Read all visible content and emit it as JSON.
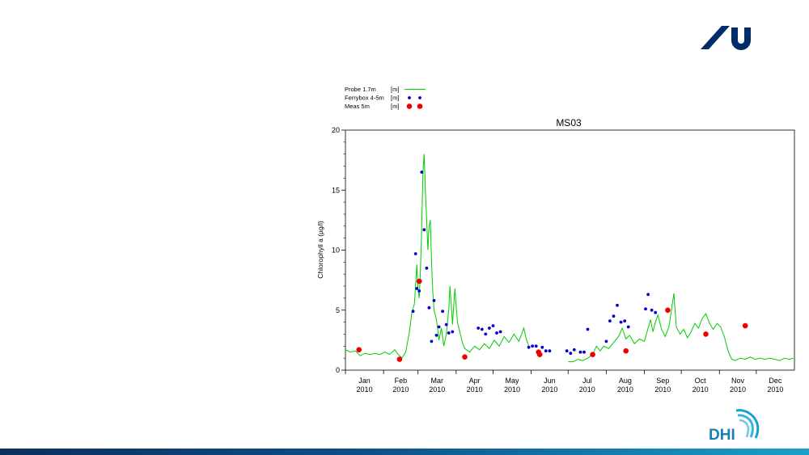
{
  "brand": {
    "primary": "#002d6a",
    "dhi_text": "DHI",
    "dhi_color": "#1a7fb5",
    "footer_bar": "#0d4f8b"
  },
  "chart_data": {
    "type": "line",
    "title": "MS03",
    "ylabel": "Chlorophyll a (µg/l)",
    "xlabel": "",
    "ylim": [
      0,
      20
    ],
    "yticks": [
      0,
      5,
      10,
      15,
      20
    ],
    "xlim": [
      "2010-01-01",
      "2010-12-31"
    ],
    "months": [
      {
        "label": "Jan",
        "year": "2010",
        "start": "2010-01-01"
      },
      {
        "label": "Feb",
        "year": "2010",
        "start": "2010-02-01"
      },
      {
        "label": "Mar",
        "year": "2010",
        "start": "2010-03-01"
      },
      {
        "label": "Apr",
        "year": "2010",
        "start": "2010-04-01"
      },
      {
        "label": "May",
        "year": "2010",
        "start": "2010-05-01"
      },
      {
        "label": "Jun",
        "year": "2010",
        "start": "2010-06-01"
      },
      {
        "label": "Jul",
        "year": "2010",
        "start": "2010-07-01"
      },
      {
        "label": "Aug",
        "year": "2010",
        "start": "2010-08-01"
      },
      {
        "label": "Sep",
        "year": "2010",
        "start": "2010-09-01"
      },
      {
        "label": "Oct",
        "year": "2010",
        "start": "2010-10-01"
      },
      {
        "label": "Nov",
        "year": "2010",
        "start": "2010-11-01"
      },
      {
        "label": "Dec",
        "year": "2010",
        "start": "2010-12-01"
      }
    ],
    "legend_placement": "top-left-above",
    "series": [
      {
        "name": "Probe 1.7m",
        "unit": "[m]",
        "kind": "line",
        "color": "#00cc00",
        "segments": [
          [
            [
              "2010-01-01",
              1.7
            ],
            [
              "2010-01-05",
              1.5
            ],
            [
              "2010-01-09",
              1.6
            ],
            [
              "2010-01-13",
              1.2
            ],
            [
              "2010-01-17",
              1.4
            ],
            [
              "2010-01-21",
              1.3
            ],
            [
              "2010-01-25",
              1.4
            ],
            [
              "2010-01-29",
              1.3
            ],
            [
              "2010-02-02",
              1.5
            ],
            [
              "2010-02-06",
              1.3
            ],
            [
              "2010-02-10",
              1.7
            ],
            [
              "2010-02-13",
              1.3
            ],
            [
              "2010-02-16",
              1.0
            ],
            [
              "2010-02-19",
              1.5
            ],
            [
              "2010-02-22",
              3.2
            ],
            [
              "2010-02-24",
              4.8
            ],
            [
              "2010-02-26",
              5.5
            ],
            [
              "2010-02-27",
              7.0
            ],
            [
              "2010-02-28",
              8.8
            ],
            [
              "2010-03-01",
              6.8
            ],
            [
              "2010-03-02",
              6.0
            ],
            [
              "2010-03-03",
              8.5
            ],
            [
              "2010-03-04",
              12.0
            ],
            [
              "2010-03-05",
              16.5
            ],
            [
              "2010-03-06",
              18.0
            ],
            [
              "2010-03-07",
              15.0
            ],
            [
              "2010-03-08",
              12.5
            ],
            [
              "2010-03-09",
              10.0
            ],
            [
              "2010-03-10",
              12.0
            ],
            [
              "2010-03-11",
              12.5
            ],
            [
              "2010-03-12",
              9.0
            ],
            [
              "2010-03-13",
              6.5
            ],
            [
              "2010-03-14",
              5.0
            ],
            [
              "2010-03-16",
              4.2
            ],
            [
              "2010-03-18",
              2.5
            ],
            [
              "2010-03-20",
              3.5
            ],
            [
              "2010-03-22",
              2.0
            ],
            [
              "2010-03-24",
              3.0
            ],
            [
              "2010-03-26",
              5.0
            ],
            [
              "2010-03-27",
              7.0
            ],
            [
              "2010-03-28",
              5.5
            ],
            [
              "2010-03-29",
              3.8
            ],
            [
              "2010-03-31",
              6.8
            ],
            [
              "2010-04-02",
              4.0
            ],
            [
              "2010-04-04",
              3.2
            ],
            [
              "2010-04-06",
              2.3
            ],
            [
              "2010-04-08",
              1.8
            ],
            [
              "2010-04-12",
              1.5
            ],
            [
              "2010-04-16",
              2.0
            ],
            [
              "2010-04-20",
              1.7
            ],
            [
              "2010-04-24",
              2.2
            ],
            [
              "2010-04-28",
              1.8
            ],
            [
              "2010-05-02",
              2.5
            ],
            [
              "2010-05-06",
              2.0
            ],
            [
              "2010-05-10",
              2.8
            ],
            [
              "2010-05-14",
              2.3
            ],
            [
              "2010-05-18",
              3.0
            ],
            [
              "2010-05-22",
              2.4
            ],
            [
              "2010-05-26",
              3.5
            ],
            [
              "2010-05-28",
              2.6
            ],
            [
              "2010-05-30",
              2.0
            ]
          ],
          [
            [
              "2010-07-01",
              0.7
            ],
            [
              "2010-07-05",
              0.7
            ],
            [
              "2010-07-09",
              0.9
            ],
            [
              "2010-07-13",
              0.8
            ],
            [
              "2010-07-17",
              1.0
            ],
            [
              "2010-07-21",
              1.3
            ],
            [
              "2010-07-24",
              2.0
            ],
            [
              "2010-07-27",
              1.6
            ],
            [
              "2010-07-30",
              2.0
            ],
            [
              "2010-08-03",
              1.8
            ],
            [
              "2010-08-07",
              2.3
            ],
            [
              "2010-08-11",
              2.8
            ],
            [
              "2010-08-14",
              3.5
            ],
            [
              "2010-08-17",
              2.6
            ],
            [
              "2010-08-20",
              2.9
            ],
            [
              "2010-08-24",
              2.2
            ],
            [
              "2010-08-28",
              2.6
            ],
            [
              "2010-09-01",
              2.4
            ],
            [
              "2010-09-04",
              3.5
            ],
            [
              "2010-09-06",
              4.2
            ],
            [
              "2010-09-08",
              3.2
            ],
            [
              "2010-09-10",
              4.0
            ],
            [
              "2010-09-12",
              4.6
            ],
            [
              "2010-09-15",
              3.4
            ],
            [
              "2010-09-18",
              2.8
            ],
            [
              "2010-09-21",
              3.6
            ],
            [
              "2010-09-23",
              5.0
            ],
            [
              "2010-09-25",
              6.4
            ],
            [
              "2010-09-27",
              3.6
            ],
            [
              "2010-09-30",
              3.0
            ],
            [
              "2010-10-03",
              3.4
            ],
            [
              "2010-10-06",
              2.7
            ],
            [
              "2010-10-09",
              3.2
            ],
            [
              "2010-10-12",
              3.9
            ],
            [
              "2010-10-15",
              3.5
            ],
            [
              "2010-10-18",
              4.3
            ],
            [
              "2010-10-21",
              4.7
            ],
            [
              "2010-10-24",
              3.9
            ],
            [
              "2010-10-27",
              3.4
            ],
            [
              "2010-10-30",
              3.9
            ],
            [
              "2010-11-02",
              3.6
            ],
            [
              "2010-11-05",
              2.8
            ],
            [
              "2010-11-08",
              1.6
            ],
            [
              "2010-11-11",
              0.9
            ],
            [
              "2010-11-14",
              0.8
            ],
            [
              "2010-11-18",
              1.0
            ],
            [
              "2010-11-22",
              0.9
            ],
            [
              "2010-11-26",
              1.1
            ],
            [
              "2010-11-30",
              0.9
            ],
            [
              "2010-12-04",
              1.0
            ],
            [
              "2010-12-08",
              0.9
            ],
            [
              "2010-12-12",
              1.0
            ],
            [
              "2010-12-16",
              0.9
            ],
            [
              "2010-12-20",
              0.8
            ],
            [
              "2010-12-24",
              1.0
            ],
            [
              "2010-12-28",
              0.9
            ],
            [
              "2010-12-31",
              1.0
            ]
          ]
        ]
      },
      {
        "name": "Ferrybox 4-5m",
        "unit": "[m]",
        "kind": "scatter",
        "color": "#0000cc",
        "points": [
          [
            "2010-02-25",
            4.9
          ],
          [
            "2010-02-27",
            9.7
          ],
          [
            "2010-02-28",
            6.8
          ],
          [
            "2010-03-02",
            6.6
          ],
          [
            "2010-03-04",
            16.5
          ],
          [
            "2010-03-06",
            11.7
          ],
          [
            "2010-03-08",
            8.5
          ],
          [
            "2010-03-10",
            5.2
          ],
          [
            "2010-03-12",
            2.4
          ],
          [
            "2010-03-14",
            5.8
          ],
          [
            "2010-03-16",
            2.9
          ],
          [
            "2010-03-18",
            3.6
          ],
          [
            "2010-03-21",
            4.9
          ],
          [
            "2010-03-24",
            3.8
          ],
          [
            "2010-03-26",
            3.1
          ],
          [
            "2010-03-29",
            3.2
          ],
          [
            "2010-04-19",
            3.5
          ],
          [
            "2010-04-22",
            3.4
          ],
          [
            "2010-04-25",
            3.0
          ],
          [
            "2010-04-28",
            3.5
          ],
          [
            "2010-05-01",
            3.7
          ],
          [
            "2010-05-04",
            3.1
          ],
          [
            "2010-05-07",
            3.2
          ],
          [
            "2010-05-30",
            1.9
          ],
          [
            "2010-06-02",
            2.0
          ],
          [
            "2010-06-05",
            2.0
          ],
          [
            "2010-06-10",
            1.9
          ],
          [
            "2010-06-13",
            1.6
          ],
          [
            "2010-06-16",
            1.6
          ],
          [
            "2010-06-30",
            1.6
          ],
          [
            "2010-07-03",
            1.4
          ],
          [
            "2010-07-06",
            1.7
          ],
          [
            "2010-07-11",
            1.5
          ],
          [
            "2010-07-14",
            1.5
          ],
          [
            "2010-07-17",
            3.4
          ],
          [
            "2010-08-01",
            2.4
          ],
          [
            "2010-08-04",
            4.1
          ],
          [
            "2010-08-07",
            4.5
          ],
          [
            "2010-08-10",
            5.4
          ],
          [
            "2010-08-13",
            4.0
          ],
          [
            "2010-08-16",
            4.1
          ],
          [
            "2010-08-19",
            3.6
          ],
          [
            "2010-09-02",
            5.1
          ],
          [
            "2010-09-04",
            6.3
          ],
          [
            "2010-09-07",
            5.0
          ],
          [
            "2010-09-10",
            4.8
          ]
        ]
      },
      {
        "name": "Meas 5m",
        "unit": "[m]",
        "kind": "scatter",
        "color": "#ee0000",
        "points": [
          [
            "2010-01-12",
            1.7
          ],
          [
            "2010-02-14",
            0.9
          ],
          [
            "2010-03-02",
            7.4
          ],
          [
            "2010-04-08",
            1.1
          ],
          [
            "2010-06-07",
            1.5
          ],
          [
            "2010-06-08",
            1.3
          ],
          [
            "2010-07-21",
            1.3
          ],
          [
            "2010-08-17",
            1.6
          ],
          [
            "2010-09-20",
            5.0
          ],
          [
            "2010-10-21",
            3.0
          ],
          [
            "2010-11-22",
            3.7
          ]
        ]
      }
    ]
  }
}
